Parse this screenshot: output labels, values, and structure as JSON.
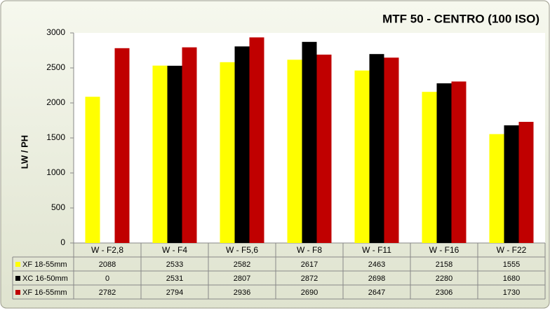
{
  "chart_data": {
    "type": "bar",
    "title": "MTF 50 - CENTRO (100 ISO)",
    "y_label": "LW / PH",
    "categories": [
      "W - F2,8",
      "W - F4",
      "W - F5,6",
      "W - F8",
      "W - F11",
      "W - F16",
      "W - F22"
    ],
    "series": [
      {
        "name": "XF 18-55mm",
        "color": "#ffff00",
        "values": [
          2088,
          2533,
          2582,
          2617,
          2463,
          2158,
          1555
        ]
      },
      {
        "name": "XC 16-50mm",
        "color": "#000000",
        "values": [
          0,
          2531,
          2807,
          2872,
          2698,
          2280,
          1680
        ]
      },
      {
        "name": "XF 16-55mm",
        "color": "#c00000",
        "values": [
          2782,
          2794,
          2936,
          2690,
          2647,
          2306,
          1730
        ]
      }
    ],
    "ylim": [
      0,
      3000
    ],
    "yticks": [
      0,
      500,
      1000,
      1500,
      2000,
      2500,
      3000
    ],
    "grid": false
  }
}
